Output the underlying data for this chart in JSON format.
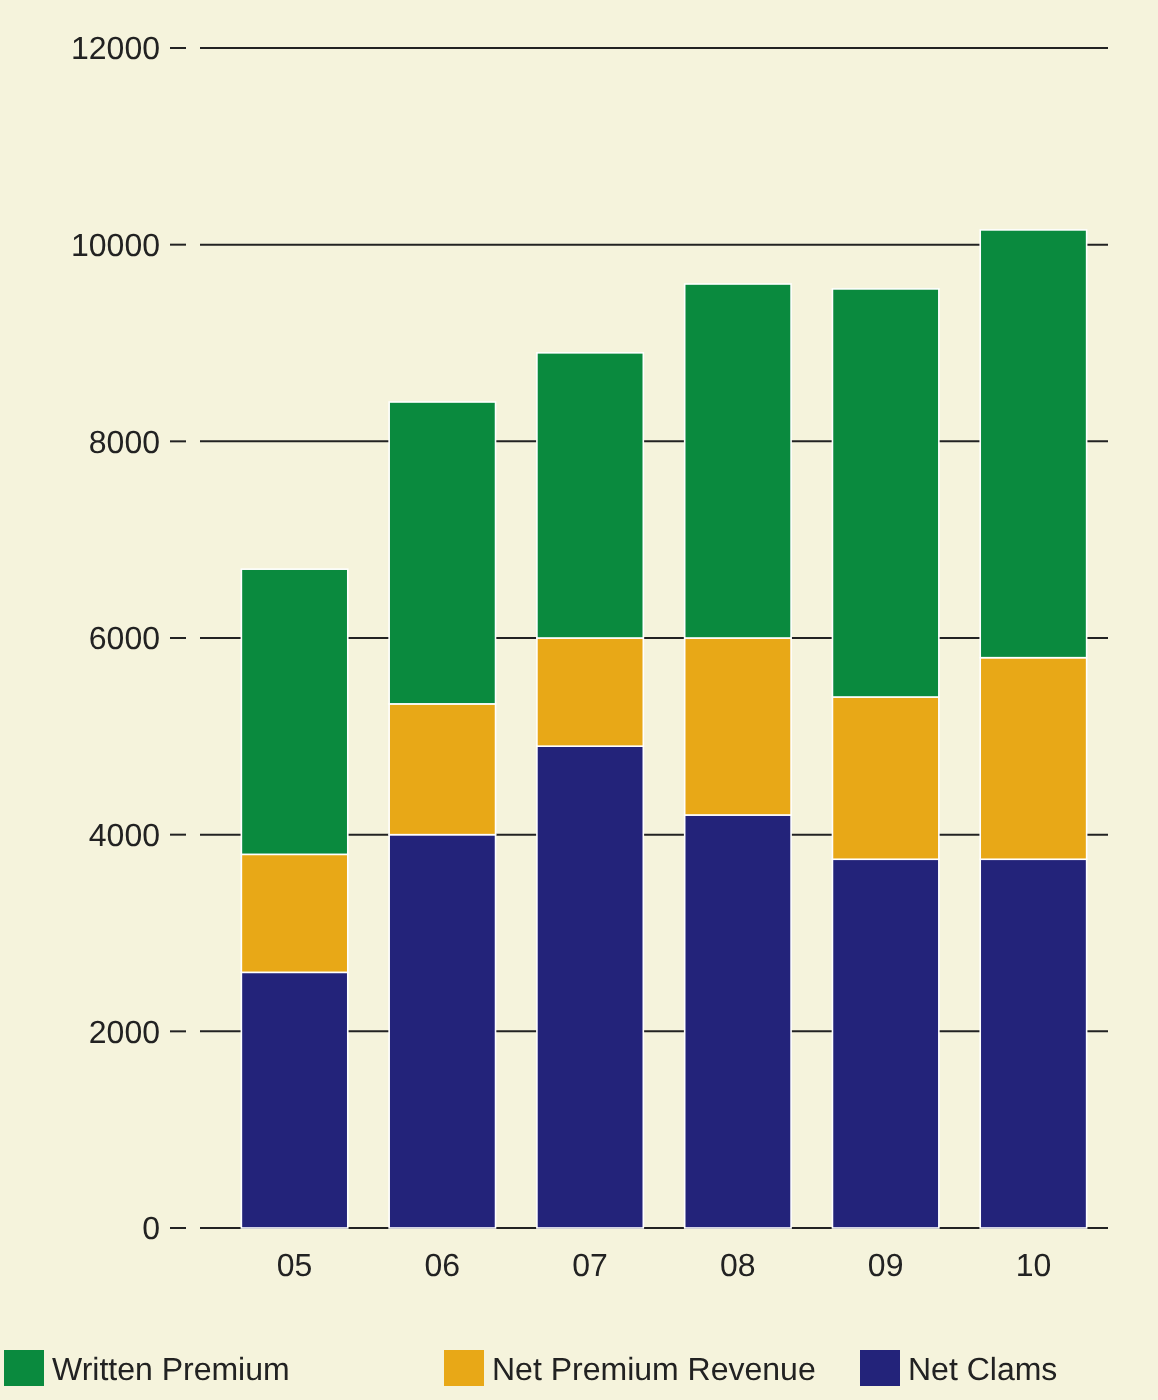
{
  "chart_data": {
    "type": "bar",
    "stacked": true,
    "categories": [
      "05",
      "06",
      "07",
      "08",
      "09",
      "10"
    ],
    "series": [
      {
        "name": "Net Clams",
        "color": "#23237a",
        "values": [
          2600,
          4000,
          4900,
          4200,
          3750,
          3750
        ]
      },
      {
        "name": "Net Premium Revenue",
        "color": "#e8a817",
        "values": [
          1200,
          1330,
          1100,
          1800,
          1650,
          2050
        ]
      },
      {
        "name": "Written Premium",
        "color": "#0a8a3e",
        "values": [
          2900,
          3070,
          2900,
          3600,
          4150,
          4350
        ]
      }
    ],
    "ylim": [
      0,
      12000
    ],
    "yticks": [
      0,
      2000,
      4000,
      6000,
      8000,
      10000,
      12000
    ],
    "grid": "y",
    "legend": "bottom"
  }
}
